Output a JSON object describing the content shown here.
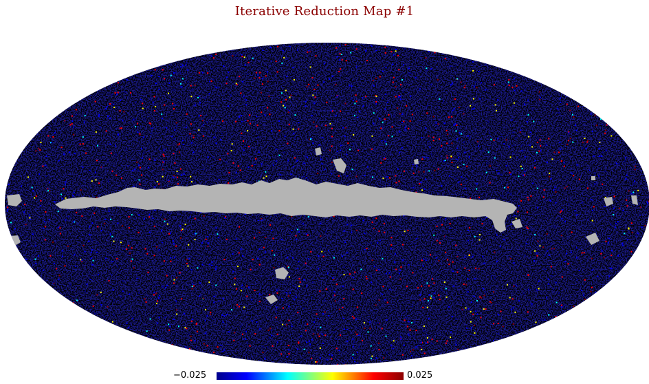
{
  "chart_data": {
    "type": "heatmap",
    "projection": "mollweide",
    "title": "Iterative Reduction Map #1",
    "colorbar": {
      "min_label": "−0.025",
      "max_label": "0.025",
      "min": -0.025,
      "max": 0.025,
      "colormap": [
        "#00008b",
        "#0000ff",
        "#00ffff",
        "#ffff00",
        "#ff0000",
        "#8b0000"
      ]
    },
    "masked_color": "#b4b4b4",
    "description_of_field": "pixel noise map with masked galactic plane and point sources"
  }
}
